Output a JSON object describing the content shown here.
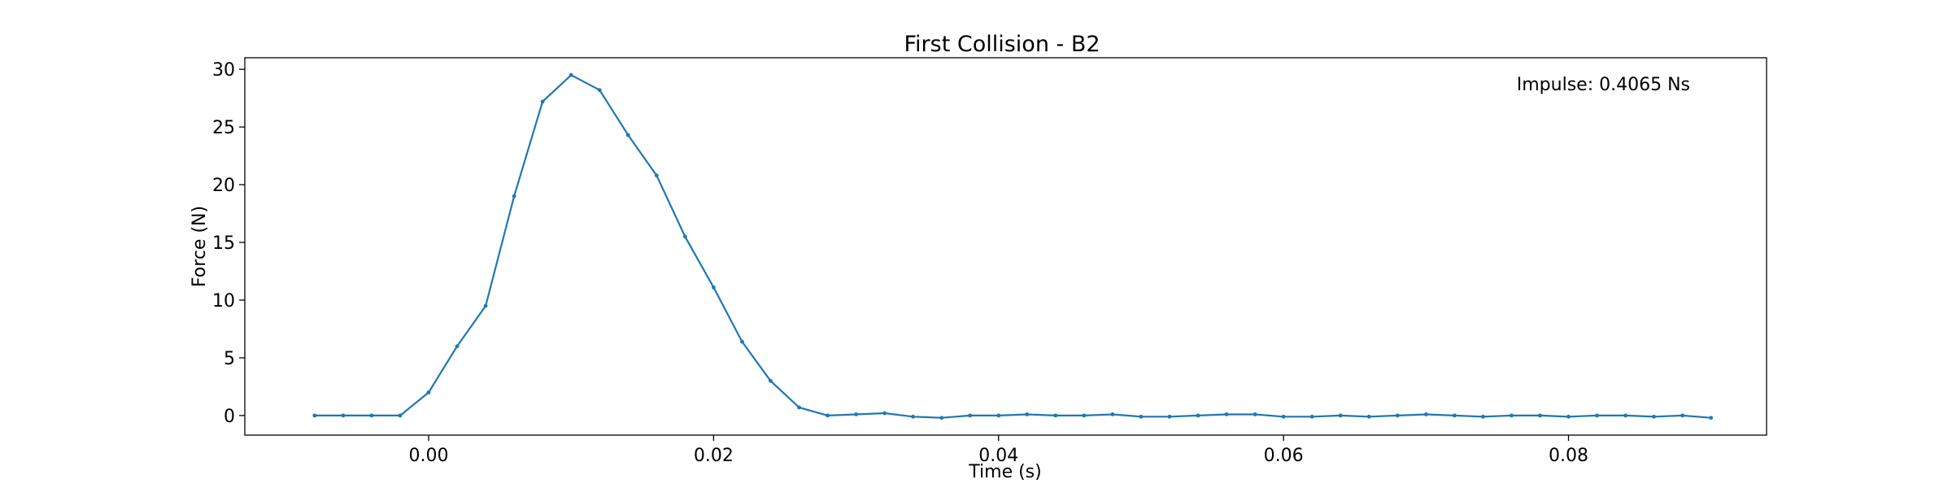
{
  "chart_data": {
    "type": "line",
    "title": "First Collision - B2",
    "xlabel": "Time (s)",
    "ylabel": "Force (N)",
    "xlim": [
      -0.0129,
      0.0939
    ],
    "ylim": [
      -1.7,
      31.0
    ],
    "xticks": [
      0.0,
      0.02,
      0.04,
      0.06,
      0.08
    ],
    "xtick_labels": [
      "0.00",
      "0.02",
      "0.04",
      "0.06",
      "0.08"
    ],
    "yticks": [
      0,
      5,
      10,
      15,
      20,
      25,
      30
    ],
    "ytick_labels": [
      "0",
      "5",
      "10",
      "15",
      "20",
      "25",
      "30"
    ],
    "grid": false,
    "annotation": "Impulse: 0.4065 Ns",
    "line_color": "#1f77b4",
    "series": [
      {
        "x": [
          -0.008,
          -0.006,
          -0.004,
          -0.002,
          0.0,
          0.002,
          0.004,
          0.006,
          0.008,
          0.01,
          0.012,
          0.014,
          0.016,
          0.018,
          0.02,
          0.022,
          0.024,
          0.026,
          0.028,
          0.03,
          0.032,
          0.034,
          0.036,
          0.038,
          0.04,
          0.042,
          0.044,
          0.046,
          0.048,
          0.05,
          0.052,
          0.054,
          0.056,
          0.058,
          0.06,
          0.062,
          0.064,
          0.066,
          0.068,
          0.07,
          0.072,
          0.074,
          0.076,
          0.078,
          0.08,
          0.082,
          0.084,
          0.086,
          0.088,
          0.09
        ],
        "y": [
          0.0,
          0.0,
          0.0,
          0.0,
          2.0,
          6.0,
          9.5,
          19.0,
          27.2,
          29.5,
          28.2,
          24.3,
          20.8,
          15.5,
          11.1,
          6.4,
          3.0,
          0.7,
          0.0,
          0.1,
          0.2,
          -0.1,
          -0.2,
          0.0,
          0.0,
          0.1,
          0.0,
          0.0,
          0.1,
          -0.1,
          -0.1,
          0.0,
          0.1,
          0.1,
          -0.1,
          -0.1,
          0.0,
          -0.1,
          0.0,
          0.1,
          0.0,
          -0.1,
          0.0,
          0.0,
          -0.1,
          0.0,
          0.0,
          -0.1,
          0.0,
          -0.2
        ]
      }
    ]
  }
}
